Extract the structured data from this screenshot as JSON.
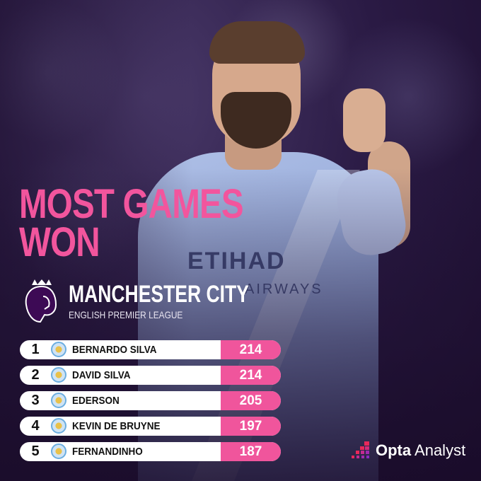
{
  "title_line1": "MOST GAMES",
  "title_line2": "WON",
  "club": "MANCHESTER CITY",
  "league": "ENGLISH PREMIER LEAGUE",
  "sponsor": "ETIHAD",
  "sponsor2": "AIRWAYS",
  "accent_color": "#f0559c",
  "rows": [
    {
      "rank": "1",
      "name": "BERNARDO SILVA",
      "value": "214"
    },
    {
      "rank": "2",
      "name": "DAVID SILVA",
      "value": "214"
    },
    {
      "rank": "3",
      "name": "EDERSON",
      "value": "205"
    },
    {
      "rank": "4",
      "name": "KEVIN DE BRUYNE",
      "value": "197"
    },
    {
      "rank": "5",
      "name": "FERNANDINHO",
      "value": "187"
    }
  ],
  "brand": {
    "bold": "Opta",
    "light": "Analyst"
  }
}
